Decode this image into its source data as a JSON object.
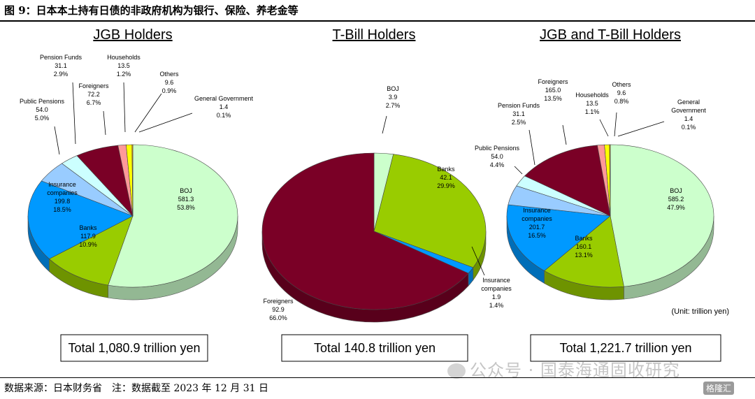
{
  "figure_title": "图 9：日本本土持有日债的非政府机构为银行、保险、养老金等",
  "source_note": "数据来源：日本财务省　注：数据截至 2023 年 12 月 31 日",
  "watermark": "公众号 · 国泰海通固收研究",
  "logo_text": "格隆汇",
  "unit_note": "(Unit: trillion yen)",
  "colors": {
    "BOJ": "#ccffcc",
    "Banks": "#99cc00",
    "Insurance companies": "#0099ff",
    "Public Pensions": "#99ccff",
    "Pension Funds": "#ccffff",
    "Foreigners": "#7a0026",
    "Households": "#ff9999",
    "Others": "#ffff00",
    "General Government": "#ff9900"
  },
  "chart_data": [
    {
      "type": "pie",
      "title": "JGB Holders",
      "total_label": "Total 1,080.9 trillion yen",
      "slices": [
        {
          "name": "BOJ",
          "value": 581.3,
          "pct": "53.8%"
        },
        {
          "name": "Banks",
          "value": 117.9,
          "pct": "10.9%"
        },
        {
          "name": "Insurance companies",
          "value": 199.8,
          "pct": "18.5%"
        },
        {
          "name": "Public Pensions",
          "value": 54.0,
          "pct": "5.0%"
        },
        {
          "name": "Pension Funds",
          "value": 31.1,
          "pct": "2.9%"
        },
        {
          "name": "Foreigners",
          "value": 72.2,
          "pct": "6.7%"
        },
        {
          "name": "Households",
          "value": 13.5,
          "pct": "1.2%"
        },
        {
          "name": "Others",
          "value": 9.6,
          "pct": "0.9%"
        },
        {
          "name": "General Government",
          "value": 1.4,
          "pct": "0.1%"
        }
      ]
    },
    {
      "type": "pie",
      "title": "T-Bill Holders",
      "total_label": "Total 140.8 trillion yen",
      "slices": [
        {
          "name": "BOJ",
          "value": 3.9,
          "pct": "2.7%"
        },
        {
          "name": "Banks",
          "value": 42.1,
          "pct": "29.9%"
        },
        {
          "name": "Insurance companies",
          "value": 1.9,
          "pct": "1.4%"
        },
        {
          "name": "Foreigners",
          "value": 92.9,
          "pct": "66.0%"
        }
      ]
    },
    {
      "type": "pie",
      "title": "JGB and T-Bill Holders",
      "total_label": "Total 1,221.7 trillion yen",
      "slices": [
        {
          "name": "BOJ",
          "value": 585.2,
          "pct": "47.9%"
        },
        {
          "name": "Banks",
          "value": 160.1,
          "pct": "13.1%"
        },
        {
          "name": "Insurance companies",
          "value": 201.7,
          "pct": "16.5%"
        },
        {
          "name": "Public Pensions",
          "value": 54.0,
          "pct": "4.4%"
        },
        {
          "name": "Pension Funds",
          "value": 31.1,
          "pct": "2.5%"
        },
        {
          "name": "Foreigners",
          "value": 165.0,
          "pct": "13.5%"
        },
        {
          "name": "Households",
          "value": 13.5,
          "pct": "1.1%"
        },
        {
          "name": "Others",
          "value": 9.6,
          "pct": "0.8%"
        },
        {
          "name": "General Government",
          "value": 1.4,
          "pct": "0.1%"
        }
      ]
    }
  ]
}
